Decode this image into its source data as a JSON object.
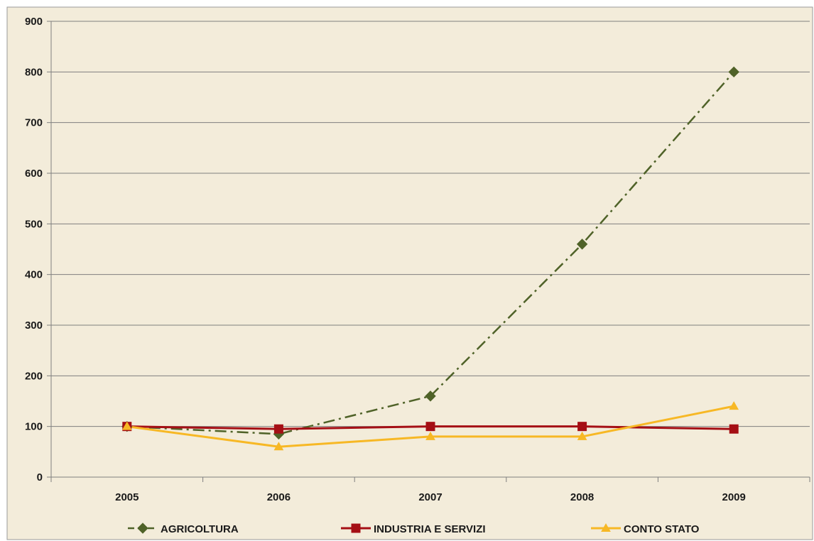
{
  "chart_data": {
    "type": "line",
    "title": "",
    "xlabel": "",
    "ylabel": "",
    "categories": [
      "2005",
      "2006",
      "2007",
      "2008",
      "2009"
    ],
    "ylim": [
      0,
      900
    ],
    "yticks": [
      0,
      100,
      200,
      300,
      400,
      500,
      600,
      700,
      800,
      900
    ],
    "grid": "horizontal",
    "legend_position": "bottom",
    "plot_background": "#f3ecda",
    "series": [
      {
        "name": "AGRICOLTURA",
        "values": [
          100,
          85,
          160,
          460,
          800
        ],
        "color": "#4f6228",
        "line_style": "dash-dot",
        "marker": "diamond"
      },
      {
        "name": "INDUSTRIA E SERVIZI",
        "values": [
          100,
          95,
          100,
          100,
          95
        ],
        "color": "#a50f15",
        "line_style": "solid",
        "marker": "square"
      },
      {
        "name": "CONTO STATO",
        "values": [
          100,
          60,
          80,
          80,
          140
        ],
        "color": "#f7b825",
        "line_style": "solid",
        "marker": "triangle"
      }
    ]
  }
}
